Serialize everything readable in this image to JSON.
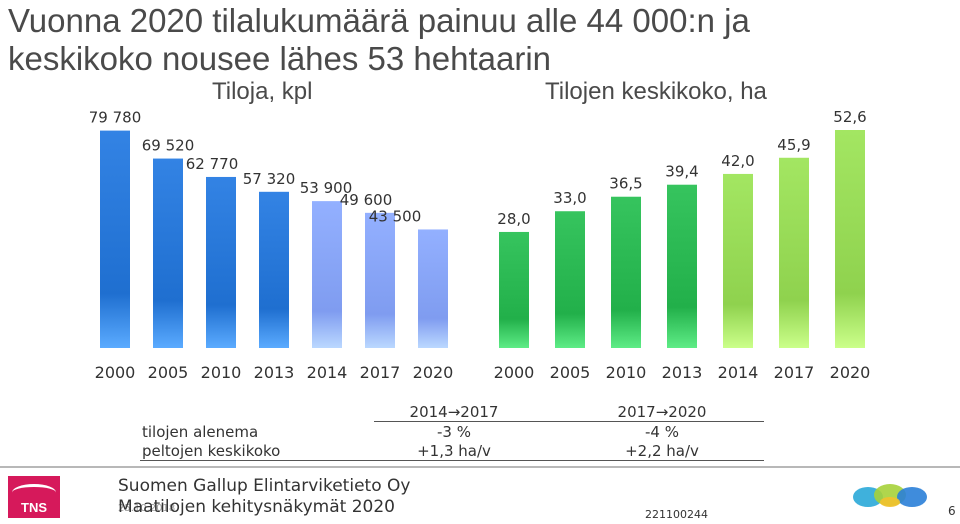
{
  "title_line1": "Vuonna 2020 tilalukumäärä painuu alle 44 000:n ja",
  "title_line2": "keskikoko nousee lähes 53 hehtaarin",
  "chart_data": [
    {
      "type": "bar",
      "title": "Tiloja, kpl",
      "categories": [
        "2000",
        "2005",
        "2010",
        "2013",
        "2014",
        "2017",
        "2020"
      ],
      "values": [
        79780,
        69520,
        62770,
        57320,
        53900,
        49600,
        43500
      ],
      "value_labels": [
        "79 780",
        "69 520",
        "62 770",
        "57 320",
        "53 900",
        "49 600",
        "43 500"
      ],
      "colors": [
        "#1f6fd0",
        "#1f6fd0",
        "#1f6fd0",
        "#1f6fd0",
        "#7f9cf0",
        "#7f9cf0",
        "#7f9cf0"
      ],
      "ylim": [
        0,
        80000
      ],
      "grid": false
    },
    {
      "type": "bar",
      "title": "Tilojen keskikoko, ha",
      "categories": [
        "2000",
        "2005",
        "2010",
        "2013",
        "2014",
        "2017",
        "2020"
      ],
      "values": [
        28.0,
        33.0,
        36.5,
        39.4,
        42.0,
        45.9,
        52.6
      ],
      "value_labels": [
        "28,0",
        "33,0",
        "36,5",
        "39,4",
        "42,0",
        "45,9",
        "52,6"
      ],
      "colors": [
        "#22b04a",
        "#22b04a",
        "#22b04a",
        "#22b04a",
        "#8fd24e",
        "#8fd24e",
        "#8fd24e"
      ],
      "ylim": [
        0,
        52.6
      ],
      "grid": false
    }
  ],
  "table": {
    "col_headers": [
      "2014→2017",
      "2017→2020"
    ],
    "rows": [
      {
        "label": "tilojen alenema",
        "values": [
          "-3 %",
          "-4 %"
        ]
      },
      {
        "label": "peltojen keskikoko",
        "values": [
          "+1,3 ha/v",
          "+2,2 ha/v"
        ]
      }
    ]
  },
  "footer": {
    "company": "Suomen Gallup Elintarviketieto Oy",
    "project": "Maatilojen kehitysnäkymät 2020",
    "date": "25.10.2018",
    "code": "221100244",
    "page": "6",
    "logo_text": "TNS"
  }
}
